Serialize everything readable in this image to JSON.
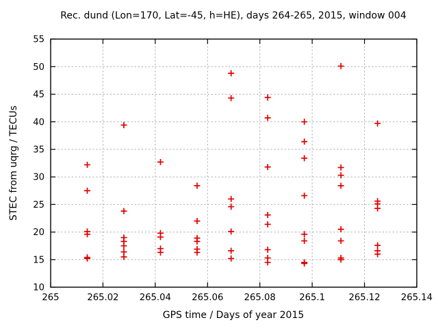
{
  "window": {
    "background": "#ffffff",
    "text_color": "#000000"
  },
  "chart_data": {
    "type": "scatter",
    "title": "Rec. dund (Lon=170, Lat=-45, h=HE), days 264-265, 2015, window 004",
    "xlabel": "GPS time / Days of year 2015",
    "ylabel": "STEC from uqrg / TECUs",
    "xlim": [
      265,
      265.14
    ],
    "ylim": [
      10,
      55
    ],
    "xticks": [
      265,
      265.02,
      265.04,
      265.06,
      265.08,
      265.1,
      265.12,
      265.14
    ],
    "xtick_labels": [
      "265",
      "265.02",
      "265.04",
      "265.06",
      "265.08",
      "265.1",
      "265.12",
      "265.14"
    ],
    "yticks": [
      10,
      15,
      20,
      25,
      30,
      35,
      40,
      45,
      50,
      55
    ],
    "ytick_labels": [
      "10",
      "15",
      "20",
      "25",
      "30",
      "35",
      "40",
      "45",
      "50",
      "55"
    ],
    "grid": true,
    "legend": "none",
    "marker": "plus",
    "marker_color": "#e00000",
    "grid_color": "#b4b4b4",
    "points": [
      [
        265.014,
        32.2
      ],
      [
        265.014,
        27.5
      ],
      [
        265.014,
        20.1
      ],
      [
        265.014,
        19.6
      ],
      [
        265.014,
        15.4
      ],
      [
        265.014,
        15.2
      ],
      [
        265.028,
        39.4
      ],
      [
        265.028,
        23.8
      ],
      [
        265.028,
        19.0
      ],
      [
        265.028,
        18.3
      ],
      [
        265.028,
        17.5
      ],
      [
        265.028,
        16.4
      ],
      [
        265.028,
        15.5
      ],
      [
        265.042,
        32.7
      ],
      [
        265.042,
        19.8
      ],
      [
        265.042,
        19.1
      ],
      [
        265.042,
        17.0
      ],
      [
        265.042,
        16.3
      ],
      [
        265.056,
        28.4
      ],
      [
        265.056,
        22.0
      ],
      [
        265.056,
        18.9
      ],
      [
        265.056,
        18.3
      ],
      [
        265.056,
        16.9
      ],
      [
        265.056,
        16.3
      ],
      [
        265.069,
        48.8
      ],
      [
        265.069,
        44.3
      ],
      [
        265.069,
        26.0
      ],
      [
        265.069,
        24.6
      ],
      [
        265.069,
        20.1
      ],
      [
        265.069,
        16.6
      ],
      [
        265.069,
        15.2
      ],
      [
        265.083,
        44.4
      ],
      [
        265.083,
        40.7
      ],
      [
        265.083,
        31.8
      ],
      [
        265.083,
        23.1
      ],
      [
        265.083,
        21.4
      ],
      [
        265.083,
        16.8
      ],
      [
        265.083,
        15.3
      ],
      [
        265.083,
        14.5
      ],
      [
        265.097,
        40.0
      ],
      [
        265.097,
        36.4
      ],
      [
        265.097,
        33.4
      ],
      [
        265.097,
        26.6
      ],
      [
        265.097,
        19.6
      ],
      [
        265.097,
        18.4
      ],
      [
        265.097,
        14.5
      ],
      [
        265.097,
        14.3
      ],
      [
        265.111,
        50.1
      ],
      [
        265.111,
        31.7
      ],
      [
        265.111,
        30.3
      ],
      [
        265.111,
        28.4
      ],
      [
        265.111,
        20.5
      ],
      [
        265.111,
        18.4
      ],
      [
        265.111,
        15.3
      ],
      [
        265.111,
        15.0
      ],
      [
        265.125,
        39.7
      ],
      [
        265.125,
        25.6
      ],
      [
        265.125,
        25.1
      ],
      [
        265.125,
        24.3
      ],
      [
        265.125,
        17.6
      ],
      [
        265.125,
        16.6
      ],
      [
        265.125,
        16.0
      ]
    ]
  }
}
